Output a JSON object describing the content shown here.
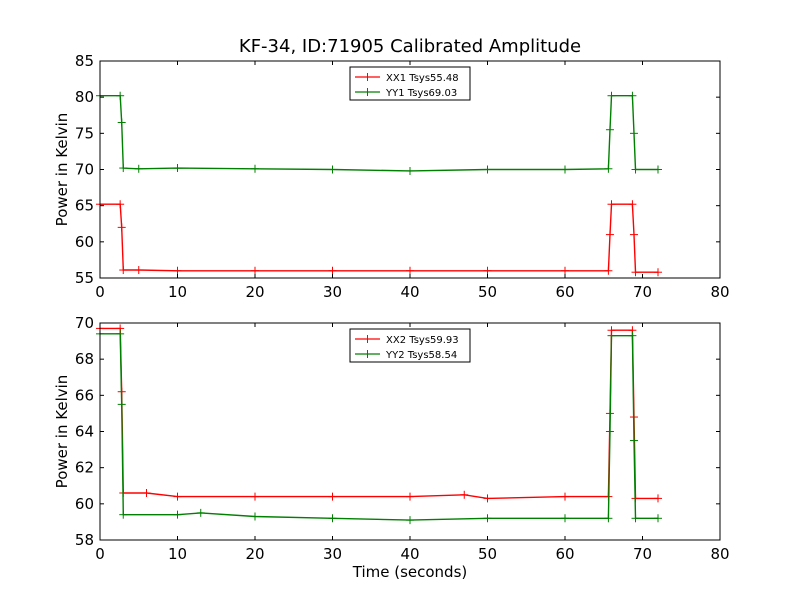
{
  "title": "KF-34, ID:71905 Calibrated Amplitude",
  "chart_data": [
    {
      "type": "line",
      "title": "KF-34, ID:71905 Calibrated Amplitude",
      "xlabel": "",
      "ylabel": "Power in Kelvin",
      "xlim": [
        0,
        80
      ],
      "ylim": [
        55,
        85
      ],
      "xticks": [
        0,
        10,
        20,
        30,
        40,
        50,
        60,
        70,
        80
      ],
      "yticks": [
        55,
        60,
        65,
        70,
        75,
        80,
        85
      ],
      "grid": false,
      "legend_position": "top-center",
      "series": [
        {
          "name": "XX1 Tsys55.48",
          "color": "#ff0000",
          "x": [
            0,
            2.6,
            2.8,
            3.0,
            5,
            10,
            20,
            30,
            40,
            50,
            60,
            65.6,
            65.8,
            66.0,
            68.7,
            68.9,
            69.1,
            72
          ],
          "y": [
            65.2,
            65.2,
            62.0,
            56.1,
            56.1,
            56.0,
            56.0,
            56.0,
            56.0,
            56.0,
            56.0,
            56.0,
            61.0,
            65.2,
            65.2,
            61.0,
            55.8,
            55.8
          ]
        },
        {
          "name": "YY1 Tsys69.03",
          "color": "#008000",
          "x": [
            0,
            2.6,
            2.8,
            3.0,
            5,
            10,
            20,
            30,
            40,
            50,
            60,
            65.6,
            65.8,
            66.0,
            68.7,
            68.9,
            69.1,
            72
          ],
          "y": [
            80.2,
            80.2,
            76.5,
            70.2,
            70.1,
            70.2,
            70.1,
            70.0,
            69.8,
            70.0,
            70.0,
            70.1,
            75.5,
            80.2,
            80.2,
            75.0,
            70.0,
            70.0
          ]
        }
      ]
    },
    {
      "type": "line",
      "title": "",
      "xlabel": "Time (seconds)",
      "ylabel": "Power in Kelvin",
      "xlim": [
        0,
        80
      ],
      "ylim": [
        58,
        70
      ],
      "xticks": [
        0,
        10,
        20,
        30,
        40,
        50,
        60,
        70,
        80
      ],
      "yticks": [
        58,
        60,
        62,
        64,
        66,
        68,
        70
      ],
      "grid": false,
      "legend_position": "top-center",
      "series": [
        {
          "name": "XX2 Tsys59.93",
          "color": "#ff0000",
          "x": [
            0,
            2.6,
            2.8,
            3.0,
            6,
            10,
            20,
            30,
            40,
            47,
            50,
            60,
            65.6,
            65.8,
            66.0,
            68.7,
            68.9,
            69.1,
            72
          ],
          "y": [
            69.7,
            69.7,
            66.2,
            60.6,
            60.6,
            60.4,
            60.4,
            60.4,
            60.4,
            60.5,
            60.3,
            60.4,
            60.4,
            65.0,
            69.6,
            69.6,
            64.8,
            60.3,
            60.3
          ]
        },
        {
          "name": "YY2 Tsys58.54",
          "color": "#008000",
          "x": [
            0,
            2.6,
            2.8,
            3.0,
            10,
            13,
            20,
            30,
            40,
            50,
            60,
            65.6,
            65.8,
            66.0,
            68.7,
            68.9,
            69.1,
            72
          ],
          "y": [
            69.4,
            69.4,
            65.5,
            59.4,
            59.4,
            59.5,
            59.3,
            59.2,
            59.1,
            59.2,
            59.2,
            59.2,
            64.0,
            69.3,
            69.3,
            63.5,
            59.2,
            59.2
          ]
        }
      ]
    }
  ]
}
